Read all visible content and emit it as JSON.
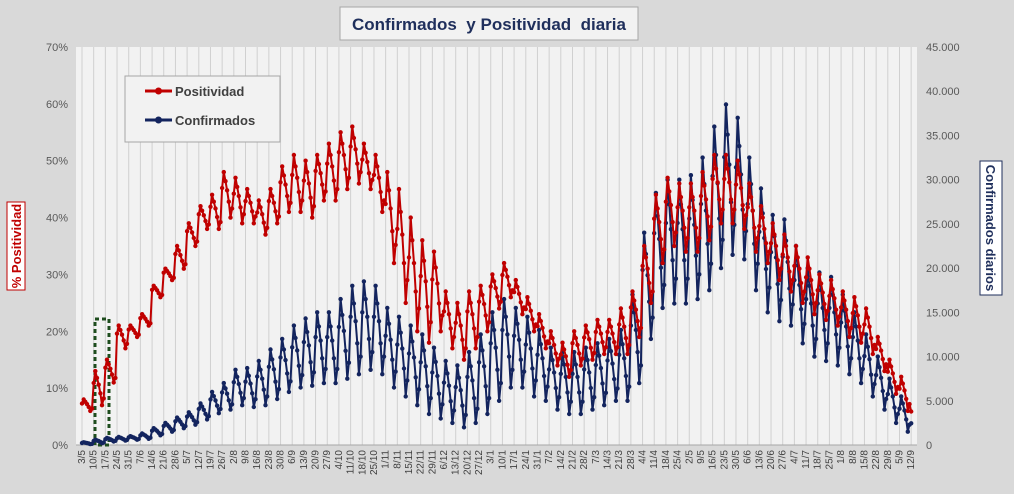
{
  "chart_data": {
    "type": "line",
    "title": "Confirmados  y Positividad  diaria",
    "ylabel_left": "% Positividad",
    "ylabel_right": "Confirmados diarios",
    "ylim_left": [
      0,
      0.7
    ],
    "ylim_right": [
      0,
      45000
    ],
    "yticks_left": [
      "0%",
      "10%",
      "20%",
      "30%",
      "40%",
      "50%",
      "60%",
      "70%"
    ],
    "yticks_right": [
      "0",
      "5.000",
      "10.000",
      "15.000",
      "20.000",
      "25.000",
      "30.000",
      "35.000",
      "40.000",
      "45.000"
    ],
    "x_categories": [
      "3/5",
      "10/5",
      "17/5",
      "24/5",
      "31/5",
      "7/6",
      "14/6",
      "21/6",
      "28/6",
      "5/7",
      "12/7",
      "19/7",
      "26/7",
      "2/8",
      "9/8",
      "16/8",
      "23/8",
      "30/8",
      "6/9",
      "13/9",
      "20/9",
      "27/9",
      "4/10",
      "11/10",
      "18/10",
      "25/10",
      "1/11",
      "8/11",
      "15/11",
      "22/11",
      "29/11",
      "6/12",
      "13/12",
      "20/12",
      "27/12",
      "3/1",
      "10/1",
      "17/1",
      "24/1",
      "31/1",
      "7/2",
      "14/2",
      "21/2",
      "28/2",
      "7/3",
      "14/3",
      "21/3",
      "28/3",
      "4/4",
      "11/4",
      "18/4",
      "25/4",
      "2/5",
      "9/5",
      "16/5",
      "23/5",
      "30/5",
      "6/6",
      "13/6",
      "20/6",
      "27/6",
      "4/7",
      "11/7",
      "18/7",
      "25/7",
      "1/8",
      "8/8",
      "15/8",
      "22/8",
      "29/8",
      "5/9",
      "12/9"
    ],
    "grid": "vertical",
    "legend_position": "top-left",
    "series": [
      {
        "name": "Positividad",
        "axis": "left",
        "color": "#c00000",
        "weekly_mean": [
          0.07,
          0.1,
          0.13,
          0.19,
          0.2,
          0.22,
          0.27,
          0.3,
          0.33,
          0.37,
          0.4,
          0.41,
          0.44,
          0.43,
          0.42,
          0.4,
          0.42,
          0.45,
          0.46,
          0.45,
          0.47,
          0.48,
          0.5,
          0.51,
          0.49,
          0.46,
          0.4,
          0.35,
          0.3,
          0.27,
          0.27,
          0.22,
          0.2,
          0.22,
          0.24,
          0.27,
          0.29,
          0.26,
          0.23,
          0.2,
          0.17,
          0.15,
          0.17,
          0.18,
          0.19,
          0.19,
          0.2,
          0.23,
          0.3,
          0.38,
          0.41,
          0.4,
          0.4,
          0.42,
          0.45,
          0.45,
          0.44,
          0.4,
          0.37,
          0.34,
          0.32,
          0.3,
          0.28,
          0.26,
          0.25,
          0.23,
          0.22,
          0.2,
          0.16,
          0.12,
          0.09,
          0.05
        ],
        "amplitude": [
          0.01,
          0.03,
          0.02,
          0.02,
          0.01,
          0.01,
          0.01,
          0.01,
          0.02,
          0.02,
          0.02,
          0.03,
          0.04,
          0.04,
          0.03,
          0.03,
          0.03,
          0.04,
          0.05,
          0.05,
          0.04,
          0.05,
          0.05,
          0.05,
          0.04,
          0.05,
          0.08,
          0.1,
          0.1,
          0.09,
          0.07,
          0.05,
          0.05,
          0.05,
          0.04,
          0.03,
          0.03,
          0.03,
          0.03,
          0.03,
          0.03,
          0.03,
          0.03,
          0.03,
          0.03,
          0.03,
          0.04,
          0.04,
          0.05,
          0.06,
          0.06,
          0.06,
          0.06,
          0.06,
          0.06,
          0.06,
          0.06,
          0.06,
          0.05,
          0.05,
          0.05,
          0.05,
          0.05,
          0.04,
          0.04,
          0.04,
          0.04,
          0.04,
          0.03,
          0.03,
          0.03,
          0.03
        ]
      },
      {
        "name": "Confirmados",
        "axis": "right",
        "color": "#13245e",
        "weekly_mean": [
          200,
          400,
          600,
          700,
          800,
          1000,
          1500,
          2000,
          2500,
          3000,
          3800,
          4800,
          5500,
          6500,
          6500,
          7000,
          8000,
          9000,
          10000,
          10500,
          11000,
          11000,
          12000,
          13000,
          13500,
          13000,
          11000,
          10000,
          9000,
          8000,
          7000,
          6000,
          5500,
          6500,
          8000,
          10000,
          11500,
          11000,
          10000,
          9000,
          7500,
          7000,
          7000,
          7500,
          8000,
          8500,
          9000,
          12000,
          18000,
          22000,
          23000,
          23000,
          23500,
          25000,
          28000,
          30000,
          29000,
          25000,
          22000,
          20000,
          19500,
          17000,
          15000,
          14500,
          14000,
          12500,
          11000,
          9000,
          7000,
          5000,
          3500,
          2000
        ],
        "amplitude": [
          100,
          200,
          200,
          200,
          200,
          300,
          400,
          500,
          600,
          700,
          900,
          1200,
          1500,
          2000,
          2200,
          2500,
          2800,
          3000,
          3500,
          3800,
          4000,
          4000,
          4500,
          5000,
          5000,
          5000,
          4500,
          4500,
          4500,
          4500,
          4000,
          3500,
          3500,
          4000,
          4500,
          5000,
          5000,
          4500,
          4500,
          4000,
          3500,
          3500,
          3500,
          3500,
          3500,
          3500,
          4000,
          5000,
          6000,
          6500,
          7000,
          7000,
          7000,
          7500,
          8000,
          8500,
          8000,
          7500,
          7000,
          6000,
          6000,
          5500,
          5000,
          5000,
          5000,
          4500,
          4000,
          3500,
          3000,
          2500,
          2000,
          1500
        ]
      }
    ]
  }
}
